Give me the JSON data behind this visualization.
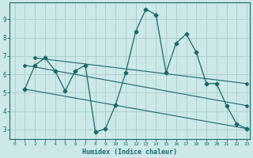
{
  "xlabel": "Humidex (Indice chaleur)",
  "bg_color": "#cce8e8",
  "grid_color": "#aacccc",
  "line_color": "#1a6868",
  "xlim": [
    -0.5,
    23.3
  ],
  "ylim": [
    2.5,
    9.9
  ],
  "xticks": [
    0,
    1,
    2,
    3,
    4,
    5,
    6,
    7,
    8,
    9,
    10,
    11,
    12,
    13,
    14,
    15,
    16,
    17,
    18,
    19,
    20,
    21,
    22,
    23
  ],
  "yticks": [
    3,
    4,
    5,
    6,
    7,
    8,
    9
  ],
  "main_series": {
    "x": [
      1,
      2,
      3,
      4,
      5,
      6,
      7,
      8,
      9,
      10,
      11,
      12,
      13,
      14,
      15,
      16,
      17,
      18,
      19,
      20,
      21,
      22,
      23
    ],
    "y": [
      5.2,
      6.5,
      6.9,
      6.2,
      5.1,
      6.2,
      6.5,
      2.85,
      3.05,
      4.35,
      6.1,
      8.35,
      9.55,
      9.25,
      6.1,
      7.7,
      8.2,
      7.2,
      5.5,
      5.5,
      4.3,
      3.3,
      3.05
    ]
  },
  "trend_lines": [
    {
      "x": [
        1,
        23
      ],
      "y": [
        5.2,
        3.05
      ]
    },
    {
      "x": [
        1,
        23
      ],
      "y": [
        6.5,
        4.3
      ]
    },
    {
      "x": [
        2,
        23
      ],
      "y": [
        6.9,
        5.5
      ]
    }
  ]
}
